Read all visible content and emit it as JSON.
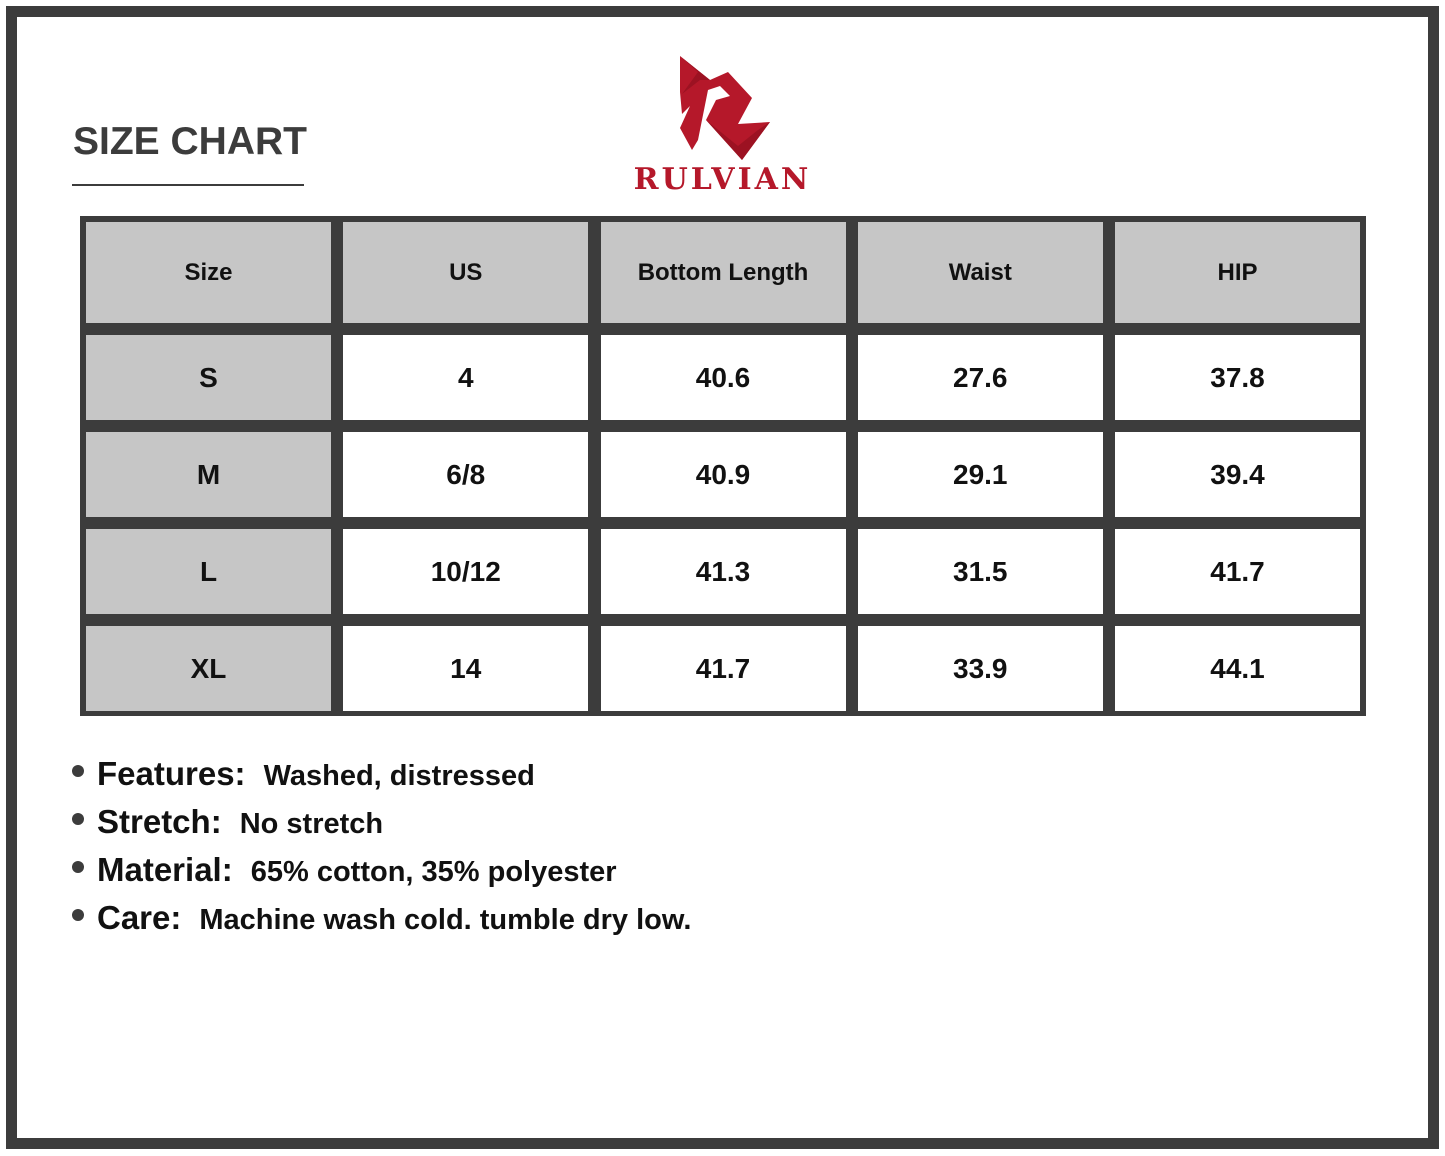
{
  "title": "SIZE CHART",
  "brand": {
    "name": "RULVIAN",
    "color": "#b5182a"
  },
  "table": {
    "headers": [
      "Size",
      "US",
      "Bottom Length",
      "Waist",
      "HIP"
    ],
    "rows": [
      [
        "S",
        "4",
        "40.6",
        "27.6",
        "37.8"
      ],
      [
        "M",
        "6/8",
        "40.9",
        "29.1",
        "39.4"
      ],
      [
        "L",
        "10/12",
        "41.3",
        "31.5",
        "41.7"
      ],
      [
        "XL",
        "14",
        "41.7",
        "33.9",
        "44.1"
      ]
    ]
  },
  "notes": [
    {
      "label": "Features:",
      "value": "Washed, distressed"
    },
    {
      "label": "Stretch:",
      "value": "No stretch"
    },
    {
      "label": "Material:",
      "value": "65% cotton, 35% polyester"
    },
    {
      "label": "Care:",
      "value": "Machine wash cold. tumble dry low."
    }
  ]
}
